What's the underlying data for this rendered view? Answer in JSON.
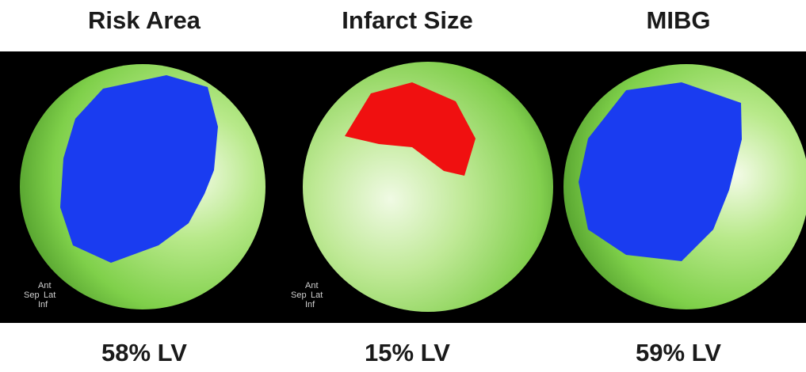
{
  "panels": [
    {
      "title": "Risk Area",
      "label": "58% LV",
      "orientation": [
        "Ant",
        "Sep",
        "Lat",
        "Inf"
      ]
    },
    {
      "title": "Infarct Size",
      "label": "15% LV",
      "orientation": [
        "Ant",
        "Sep",
        "Lat",
        "Inf"
      ]
    },
    {
      "title": "MIBG",
      "label": "59% LV"
    }
  ]
}
